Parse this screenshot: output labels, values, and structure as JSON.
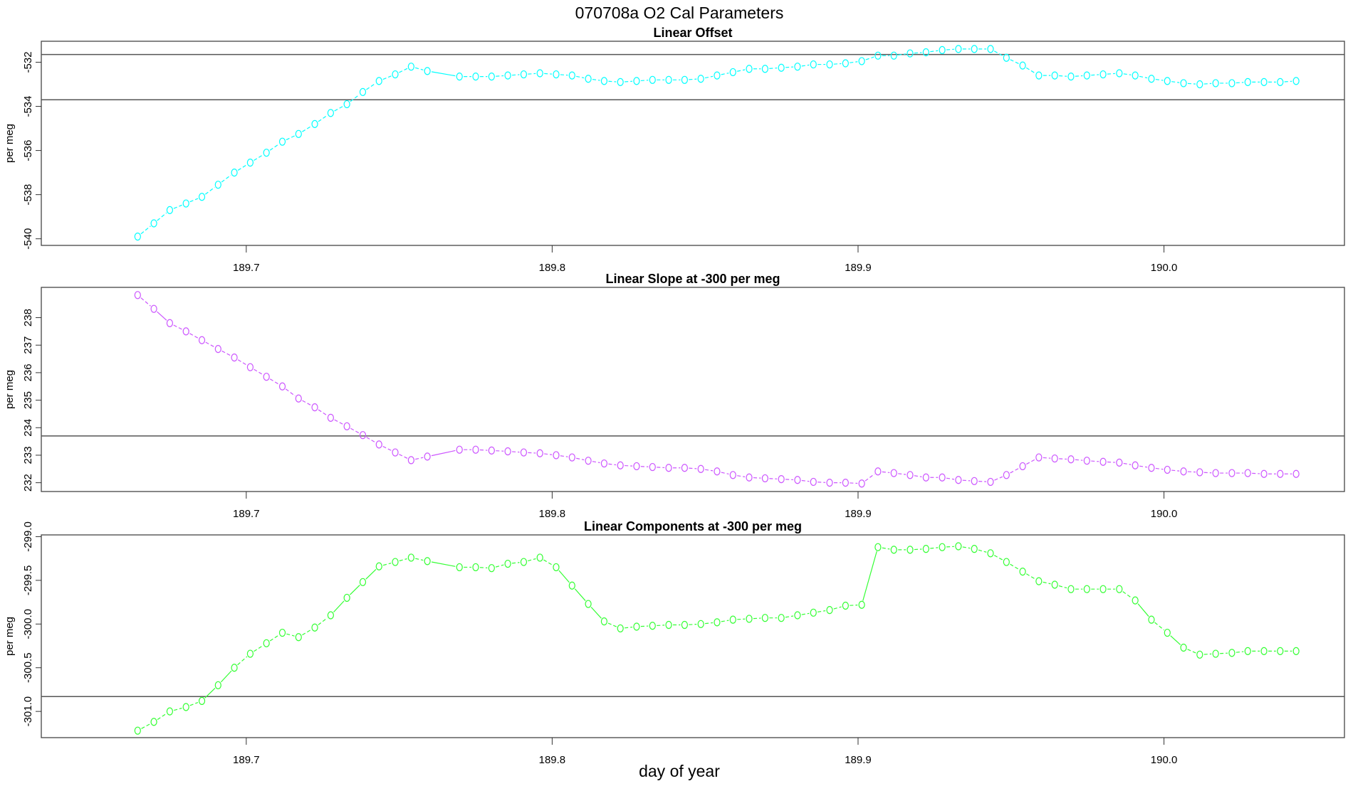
{
  "title": "070708a   O2 Cal Parameters",
  "xlabel": "day of year",
  "chart_data": [
    {
      "type": "line",
      "title": "Linear Offset",
      "ylabel": "per meg",
      "color": "#00ffff",
      "xlim": [
        189.633,
        190.059
      ],
      "ylim": [
        -540.3,
        -531.05
      ],
      "xticks": [
        "189.7",
        "189.8",
        "189.9",
        "190.0"
      ],
      "yticks": [
        "-540",
        "-538",
        "-536",
        "-534",
        "-532"
      ],
      "hlines": [
        -531.65,
        -533.7
      ],
      "x": [
        189.6645,
        189.6698,
        189.675,
        189.6803,
        189.6855,
        189.6908,
        189.6961,
        189.7013,
        189.7066,
        189.7118,
        189.7171,
        189.7224,
        189.7276,
        189.7329,
        189.7381,
        189.7434,
        189.7487,
        189.7539,
        189.7592,
        189.7697,
        189.775,
        189.7802,
        189.7855,
        189.7907,
        189.796,
        189.8013,
        189.8065,
        189.8118,
        189.817,
        189.8223,
        189.8276,
        189.8328,
        189.8381,
        189.8433,
        189.8486,
        189.8539,
        189.8591,
        189.8644,
        189.8696,
        189.8749,
        189.8802,
        189.8854,
        189.8907,
        189.8959,
        189.9012,
        189.9065,
        189.9117,
        189.917,
        189.9222,
        189.9275,
        189.9328,
        189.938,
        189.9433,
        189.9485,
        189.9538,
        189.9591,
        189.9643,
        189.9696,
        189.9748,
        189.9801,
        189.9854,
        189.9906,
        189.9959,
        190.0011,
        190.0064,
        190.0117,
        190.0169,
        190.0222,
        190.0274,
        190.0327,
        190.038,
        190.0432
      ],
      "y": [
        -539.9,
        -539.3,
        -538.7,
        -538.4,
        -538.1,
        -537.55,
        -537.0,
        -536.55,
        -536.1,
        -535.6,
        -535.25,
        -534.8,
        -534.3,
        -533.9,
        -533.35,
        -532.85,
        -532.55,
        -532.2,
        -532.4,
        -532.65,
        -532.65,
        -532.65,
        -532.6,
        -532.55,
        -532.5,
        -532.55,
        -532.6,
        -532.75,
        -532.85,
        -532.9,
        -532.85,
        -532.8,
        -532.8,
        -532.8,
        -532.75,
        -532.6,
        -532.45,
        -532.3,
        -532.3,
        -532.25,
        -532.2,
        -532.1,
        -532.1,
        -532.05,
        -531.95,
        -531.7,
        -531.7,
        -531.6,
        -531.55,
        -531.45,
        -531.4,
        -531.4,
        -531.4,
        -531.8,
        -532.15,
        -532.6,
        -532.6,
        -532.65,
        -532.6,
        -532.55,
        -532.5,
        -532.6,
        -532.75,
        -532.85,
        -532.95,
        -533.0,
        -532.95,
        -532.95,
        -532.9,
        -532.9,
        -532.9,
        -532.85
      ]
    },
    {
      "type": "line",
      "title": "Linear Slope at -300 per meg",
      "ylabel": "per meg",
      "color": "#cc55ff",
      "xlim": [
        189.633,
        190.059
      ],
      "ylim": [
        231.68,
        239.1
      ],
      "xticks": [
        "189.7",
        "189.8",
        "189.9",
        "190.0"
      ],
      "yticks": [
        "232",
        "233",
        "234",
        "235",
        "236",
        "237",
        "238"
      ],
      "hlines": [
        233.7
      ],
      "x": [
        189.6645,
        189.6698,
        189.675,
        189.6803,
        189.6855,
        189.6908,
        189.6961,
        189.7013,
        189.7066,
        189.7118,
        189.7171,
        189.7224,
        189.7276,
        189.7329,
        189.7381,
        189.7434,
        189.7487,
        189.7539,
        189.7592,
        189.7697,
        189.775,
        189.7802,
        189.7855,
        189.7907,
        189.796,
        189.8013,
        189.8065,
        189.8118,
        189.817,
        189.8223,
        189.8276,
        189.8328,
        189.8381,
        189.8433,
        189.8486,
        189.8539,
        189.8591,
        189.8644,
        189.8696,
        189.8749,
        189.8802,
        189.8854,
        189.8907,
        189.8959,
        189.9012,
        189.9065,
        189.9117,
        189.917,
        189.9222,
        189.9275,
        189.9328,
        189.938,
        189.9433,
        189.9485,
        189.9538,
        189.9591,
        189.9643,
        189.9696,
        189.9748,
        189.9801,
        189.9854,
        189.9906,
        189.9959,
        190.0011,
        190.0064,
        190.0117,
        190.0169,
        190.0222,
        190.0274,
        190.0327,
        190.038,
        190.0432
      ],
      "y": [
        238.82,
        238.32,
        237.8,
        237.5,
        237.18,
        236.86,
        236.55,
        236.2,
        235.85,
        235.5,
        235.06,
        234.74,
        234.36,
        234.05,
        233.73,
        233.39,
        233.1,
        232.82,
        232.95,
        233.2,
        233.2,
        233.17,
        233.14,
        233.1,
        233.07,
        233.0,
        232.92,
        232.8,
        232.7,
        232.63,
        232.6,
        232.57,
        232.54,
        232.54,
        232.5,
        232.41,
        232.28,
        232.19,
        232.16,
        232.13,
        232.1,
        232.03,
        232.0,
        232.0,
        231.97,
        232.41,
        232.35,
        232.28,
        232.19,
        232.19,
        232.1,
        232.06,
        232.03,
        232.28,
        232.6,
        232.92,
        232.88,
        232.85,
        232.8,
        232.76,
        232.73,
        232.63,
        232.54,
        232.47,
        232.41,
        232.38,
        232.35,
        232.35,
        232.35,
        232.32,
        232.32,
        232.32
      ]
    },
    {
      "type": "line",
      "title": "Linear Components at -300 per meg",
      "ylabel": "per meg",
      "color": "#33ff33",
      "xlim": [
        189.633,
        190.059
      ],
      "ylim": [
        -301.3,
        -298.98
      ],
      "xticks": [
        "189.7",
        "189.8",
        "189.9",
        "190.0"
      ],
      "yticks": [
        "-301.0",
        "-300.5",
        "-300.0",
        "-299.5",
        "-299.0"
      ],
      "hlines": [
        -300.83
      ],
      "x": [
        189.6645,
        189.6698,
        189.675,
        189.6803,
        189.6855,
        189.6908,
        189.6961,
        189.7013,
        189.7066,
        189.7118,
        189.7171,
        189.7224,
        189.7276,
        189.7329,
        189.7381,
        189.7434,
        189.7487,
        189.7539,
        189.7592,
        189.7697,
        189.775,
        189.7802,
        189.7855,
        189.7907,
        189.796,
        189.8013,
        189.8065,
        189.8118,
        189.817,
        189.8223,
        189.8276,
        189.8328,
        189.8381,
        189.8433,
        189.8486,
        189.8539,
        189.8591,
        189.8644,
        189.8696,
        189.8749,
        189.8802,
        189.8854,
        189.8907,
        189.8959,
        189.9012,
        189.9065,
        189.9117,
        189.917,
        189.9222,
        189.9275,
        189.9328,
        189.938,
        189.9433,
        189.9485,
        189.9538,
        189.9591,
        189.9643,
        189.9696,
        189.9748,
        189.9801,
        189.9854,
        189.9906,
        189.9959,
        190.0011,
        190.0064,
        190.0117,
        190.0169,
        190.0222,
        190.0274,
        190.0327,
        190.038,
        190.0432
      ],
      "y": [
        -301.22,
        -301.12,
        -301.0,
        -300.95,
        -300.88,
        -300.7,
        -300.5,
        -300.34,
        -300.22,
        -300.1,
        -300.15,
        -300.04,
        -299.9,
        -299.7,
        -299.52,
        -299.34,
        -299.29,
        -299.24,
        -299.28,
        -299.35,
        -299.35,
        -299.36,
        -299.31,
        -299.29,
        -299.24,
        -299.35,
        -299.56,
        -299.77,
        -299.97,
        -300.05,
        -300.03,
        -300.02,
        -300.01,
        -300.01,
        -300.0,
        -299.98,
        -299.95,
        -299.94,
        -299.93,
        -299.93,
        -299.9,
        -299.87,
        -299.84,
        -299.79,
        -299.78,
        -299.12,
        -299.15,
        -299.15,
        -299.14,
        -299.12,
        -299.11,
        -299.14,
        -299.19,
        -299.29,
        -299.4,
        -299.51,
        -299.55,
        -299.6,
        -299.6,
        -299.6,
        -299.6,
        -299.73,
        -299.95,
        -300.1,
        -300.27,
        -300.35,
        -300.34,
        -300.33,
        -300.31,
        -300.31,
        -300.31,
        -300.31
      ]
    }
  ]
}
